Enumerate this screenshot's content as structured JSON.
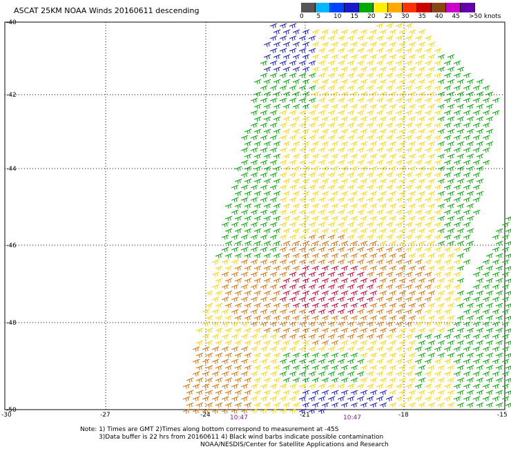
{
  "title": "ASCAT 25KM NOAA Winds 20160611 descending",
  "legend": {
    "labels": [
      "0",
      "5",
      "10",
      "15",
      "20",
      "25",
      "30",
      "35",
      "40",
      "45",
      ">50 knots"
    ],
    "colors": [
      "#555555",
      "#00b7ff",
      "#0044ff",
      "#1a1acc",
      "#00aa00",
      "#ffee00",
      "#ffaa00",
      "#ff3300",
      "#cc0000",
      "#8b4513",
      "#cc00cc",
      "#6600aa"
    ]
  },
  "axes": {
    "lat_labels": [
      "-40",
      "-42",
      "-44",
      "-46",
      "-48",
      "-50"
    ],
    "lon_labels": [
      "-30",
      "-27",
      "-24",
      "-21",
      "-18",
      "-15"
    ]
  },
  "times": [
    "10:47",
    "10:47"
  ],
  "notes": {
    "line1": "Note: 1) Times are GMT 2)Times along bottom correspond to measurement at -45S",
    "line2": "3)Data buffer is 22 hrs from 20160611 4) Black wind barbs indicate possible contamination",
    "line3": "NOAA/NESDIS/Center for Satellite Applications and Research"
  }
}
